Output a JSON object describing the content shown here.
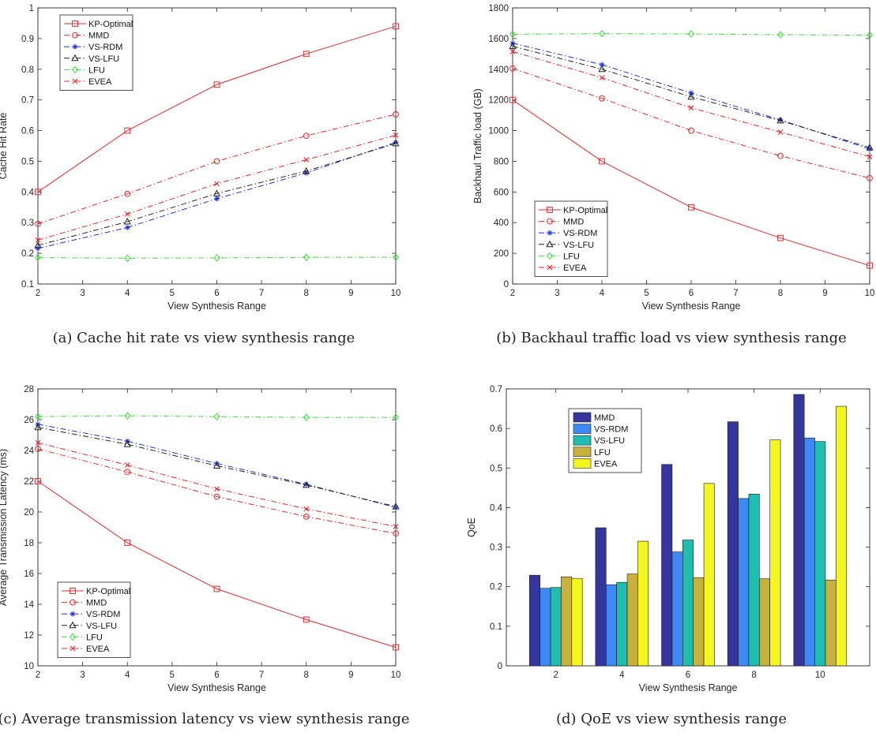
{
  "figure": {
    "captions": [
      "(a) Cache hit rate vs view synthesis range",
      "(b) Backhaul traffic load vs view synthesis range",
      "(c) Average transmission latency vs view synthesis range",
      "(d) QoE vs view synthesis range"
    ]
  },
  "chart_data": [
    {
      "type": "line",
      "xlabel": "View Synthesis Range",
      "ylabel": "Cache Hit Rate",
      "xlim": [
        2,
        10
      ],
      "ylim": [
        0.1,
        1
      ],
      "xticks": [
        2,
        3,
        4,
        5,
        6,
        7,
        8,
        9,
        10
      ],
      "yticks": [
        0.1,
        0.2,
        0.3,
        0.4,
        0.5,
        0.6,
        0.7,
        0.8,
        0.9,
        1
      ],
      "legend_position": "top-left",
      "x": [
        2,
        4,
        6,
        8,
        10
      ],
      "series": [
        {
          "name": "KP-Optimal",
          "values": [
            0.4,
            0.6,
            0.75,
            0.85,
            0.94
          ],
          "color": "#e8262a",
          "dash": "solid",
          "marker": "square"
        },
        {
          "name": "MMD",
          "values": [
            0.296,
            0.394,
            0.5,
            0.583,
            0.653
          ],
          "color": "#e8262a",
          "dash": "dashdot",
          "marker": "circle"
        },
        {
          "name": "VS-RDM",
          "values": [
            0.216,
            0.284,
            0.378,
            0.462,
            0.562
          ],
          "color": "#1f2fdd",
          "dash": "dashdot",
          "marker": "star"
        },
        {
          "name": "VS-LFU",
          "values": [
            0.226,
            0.303,
            0.395,
            0.468,
            0.558
          ],
          "color": "#222222",
          "dash": "dashdot",
          "marker": "triangle"
        },
        {
          "name": "LFU",
          "values": [
            0.186,
            0.184,
            0.185,
            0.187,
            0.187
          ],
          "color": "#3ddc3d",
          "dash": "dashdot",
          "marker": "diamond"
        },
        {
          "name": "EVEA",
          "values": [
            0.243,
            0.328,
            0.427,
            0.505,
            0.585
          ],
          "color": "#e8262a",
          "dash": "dashdot",
          "marker": "x"
        }
      ]
    },
    {
      "type": "line",
      "xlabel": "View Synthesis Range",
      "ylabel": "Backhaul Traffic load (GB)",
      "xlim": [
        2,
        10
      ],
      "ylim": [
        0,
        1800
      ],
      "xticks": [
        2,
        3,
        4,
        5,
        6,
        7,
        8,
        9,
        10
      ],
      "yticks": [
        0,
        200,
        400,
        600,
        800,
        1000,
        1200,
        1400,
        1600,
        1800
      ],
      "legend_position": "bottom-left",
      "x": [
        2,
        4,
        6,
        8,
        10
      ],
      "series": [
        {
          "name": "KP-Optimal",
          "values": [
            1200,
            800,
            500,
            300,
            120
          ],
          "color": "#e8262a",
          "dash": "solid",
          "marker": "square"
        },
        {
          "name": "MMD",
          "values": [
            1405,
            1210,
            1000,
            835,
            690
          ],
          "color": "#e8262a",
          "dash": "dashdot",
          "marker": "circle"
        },
        {
          "name": "VS-RDM",
          "values": [
            1570,
            1430,
            1245,
            1070,
            880
          ],
          "color": "#1f2fdd",
          "dash": "dashdot",
          "marker": "star"
        },
        {
          "name": "VS-LFU",
          "values": [
            1550,
            1400,
            1220,
            1065,
            890
          ],
          "color": "#222222",
          "dash": "dashdot",
          "marker": "triangle"
        },
        {
          "name": "LFU",
          "values": [
            1628,
            1632,
            1630,
            1625,
            1622
          ],
          "color": "#3ddc3d",
          "dash": "dashdot",
          "marker": "diamond"
        },
        {
          "name": "EVEA",
          "values": [
            1515,
            1345,
            1148,
            990,
            830
          ],
          "color": "#e8262a",
          "dash": "dashdot",
          "marker": "x"
        }
      ]
    },
    {
      "type": "line",
      "xlabel": "View Synthesis Range",
      "ylabel": "Average Transmission Latency (ms)",
      "xlim": [
        2,
        10
      ],
      "ylim": [
        10,
        28
      ],
      "xticks": [
        2,
        3,
        4,
        5,
        6,
        7,
        8,
        9,
        10
      ],
      "yticks": [
        10,
        12,
        14,
        16,
        18,
        20,
        22,
        24,
        26,
        28
      ],
      "legend_position": "bottom-left",
      "x": [
        2,
        4,
        6,
        8,
        10
      ],
      "series": [
        {
          "name": "KP-Optimal",
          "values": [
            22.0,
            18.0,
            15.0,
            13.0,
            11.2
          ],
          "color": "#e8262a",
          "dash": "solid",
          "marker": "square"
        },
        {
          "name": "MMD",
          "values": [
            24.1,
            22.6,
            21.0,
            19.7,
            18.6
          ],
          "color": "#e8262a",
          "dash": "dashdot",
          "marker": "circle"
        },
        {
          "name": "VS-RDM",
          "values": [
            25.7,
            24.6,
            23.15,
            21.8,
            20.3
          ],
          "color": "#1f2fdd",
          "dash": "dashdot",
          "marker": "star"
        },
        {
          "name": "VS-LFU",
          "values": [
            25.5,
            24.4,
            23.0,
            21.75,
            20.35
          ],
          "color": "#222222",
          "dash": "dashdot",
          "marker": "triangle"
        },
        {
          "name": "LFU",
          "values": [
            26.2,
            26.25,
            26.2,
            26.15,
            26.15
          ],
          "color": "#3ddc3d",
          "dash": "dashdot",
          "marker": "diamond"
        },
        {
          "name": "EVEA",
          "values": [
            24.5,
            23.05,
            21.5,
            20.2,
            19.05
          ],
          "color": "#e8262a",
          "dash": "dashdot",
          "marker": "x"
        }
      ]
    },
    {
      "type": "bar",
      "xlabel": "View Synthesis Range",
      "ylabel": "QoE",
      "ylim": [
        0,
        0.7
      ],
      "yticks": [
        0,
        0.1,
        0.2,
        0.3,
        0.4,
        0.5,
        0.6,
        0.7
      ],
      "legend_position": "top-left",
      "categories": [
        "2",
        "4",
        "6",
        "8",
        "10"
      ],
      "series": [
        {
          "name": "MMD",
          "values": [
            0.229,
            0.349,
            0.509,
            0.617,
            0.686
          ],
          "color": "#35359e"
        },
        {
          "name": "VS-RDM",
          "values": [
            0.196,
            0.205,
            0.288,
            0.423,
            0.576
          ],
          "color": "#3d8af5"
        },
        {
          "name": "VS-LFU",
          "values": [
            0.198,
            0.211,
            0.318,
            0.434,
            0.567
          ],
          "color": "#1fbcb0"
        },
        {
          "name": "LFU",
          "values": [
            0.225,
            0.232,
            0.223,
            0.22,
            0.217
          ],
          "color": "#c6b13c"
        },
        {
          "name": "EVEA",
          "values": [
            0.221,
            0.315,
            0.461,
            0.571,
            0.656
          ],
          "color": "#f5f51f"
        }
      ]
    }
  ]
}
